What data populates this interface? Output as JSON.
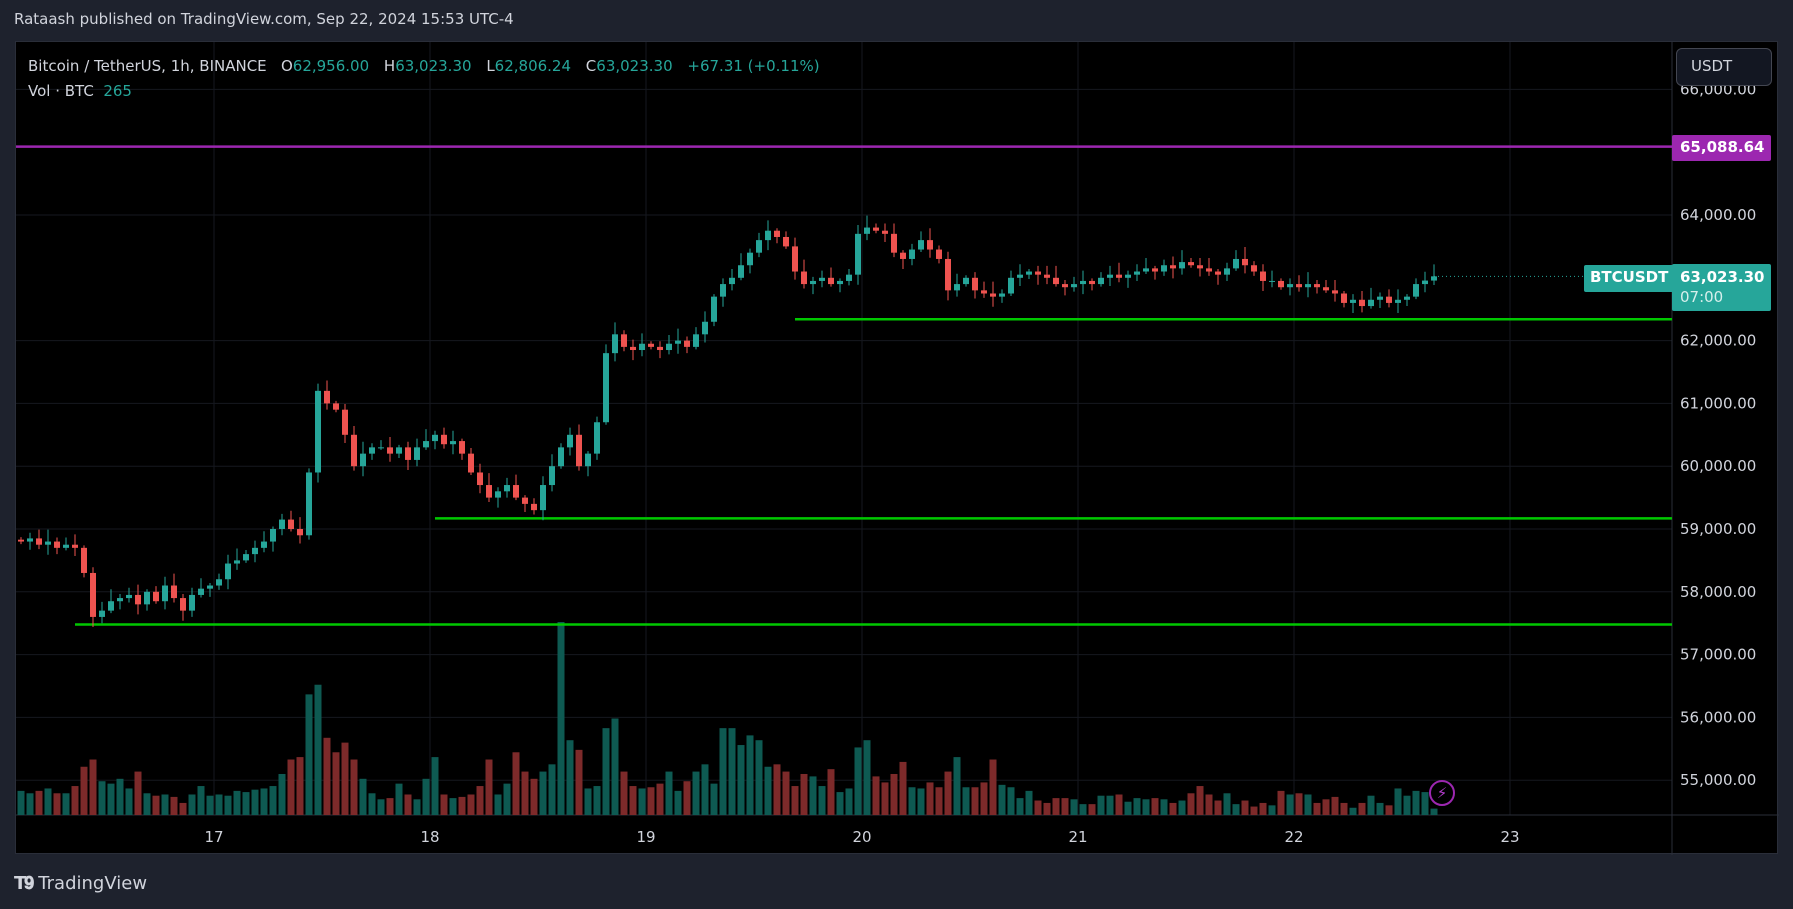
{
  "header": {
    "published": "Rataash published on TradingView.com, Sep 22, 2024 15:53 UTC-4"
  },
  "legend": {
    "symbol": "Bitcoin / TetherUS, 1h, BINANCE",
    "o_label": "O",
    "o": "62,956.00",
    "h_label": "H",
    "h": "63,023.30",
    "l_label": "L",
    "l": "62,806.24",
    "c_label": "C",
    "c": "63,023.30",
    "change": "+67.31 (+0.11%)",
    "vol_label": "Vol · BTC",
    "vol": "265"
  },
  "currency_button": "USDT",
  "last_price": {
    "symbol": "BTCUSDT",
    "price": "63,023.30",
    "countdown": "07:00"
  },
  "alert_line_label": "65,088.64",
  "brand": {
    "logo": "TV",
    "name": "TradingView"
  },
  "colors": {
    "up": "#26a69a",
    "down": "#ef5350",
    "vol_up": "#0e5a52",
    "vol_down": "#7d2a2a",
    "purple": "#9c27b0",
    "green_line": "#00c800"
  },
  "chart_data": {
    "type": "candlestick",
    "title": "Bitcoin / TetherUS, 1h, BINANCE",
    "x_start": "16 02:00",
    "interval": "1h",
    "x_ticks": [
      "17",
      "18",
      "19",
      "20",
      "21",
      "22",
      "23"
    ],
    "y_ticks": [
      "66,000.00",
      "64,000.00",
      "62,000.00",
      "61,000.00",
      "60,000.00",
      "59,000.00",
      "58,000.00",
      "57,000.00",
      "56,000.00",
      "55,000.00"
    ],
    "y_tick_values": [
      66000,
      64000,
      62000,
      61000,
      60000,
      59000,
      58000,
      57000,
      56000,
      55000
    ],
    "ylim": [
      54400,
      66700
    ],
    "close": [
      58800,
      58850,
      58750,
      58800,
      58700,
      58750,
      58700,
      58300,
      57600,
      57700,
      57850,
      57900,
      57950,
      57800,
      58000,
      57850,
      58100,
      57900,
      57700,
      57950,
      58050,
      58100,
      58200,
      58450,
      58500,
      58600,
      58700,
      58800,
      59000,
      59150,
      59000,
      58900,
      59900,
      61200,
      61000,
      60900,
      60500,
      60000,
      60200,
      60300,
      60300,
      60200,
      60300,
      60100,
      60300,
      60400,
      60500,
      60350,
      60400,
      60200,
      59900,
      59700,
      59500,
      59600,
      59700,
      59500,
      59400,
      59300,
      59700,
      60000,
      60300,
      60500,
      60000,
      60200,
      60700,
      61800,
      62100,
      61900,
      61850,
      61950,
      61900,
      61850,
      61950,
      62000,
      61900,
      62100,
      62300,
      62700,
      62900,
      63000,
      63200,
      63400,
      63600,
      63750,
      63650,
      63500,
      63100,
      62900,
      62950,
      63000,
      62900,
      62950,
      63050,
      63700,
      63800,
      63750,
      63700,
      63400,
      63300,
      63450,
      63600,
      63450,
      63300,
      62800,
      62900,
      63000,
      62800,
      62750,
      62700,
      62750,
      63000,
      63050,
      63100,
      63050,
      63000,
      62900,
      62850,
      62900,
      62950,
      62900,
      63000,
      63050,
      63000,
      63050,
      63100,
      63150,
      63100,
      63200,
      63150,
      63250,
      63200,
      63150,
      63100,
      63050,
      63150,
      63300,
      63200,
      63100,
      62950,
      62950,
      62850,
      62900,
      62850,
      62900,
      62850,
      62800,
      62750,
      62600,
      62650,
      62550,
      62650,
      62700,
      62600,
      62650,
      62700,
      62900,
      62956,
      63023.3
    ],
    "volume": [
      1000,
      900,
      1000,
      1100,
      900,
      900,
      1200,
      2000,
      2300,
      1400,
      1300,
      1500,
      1100,
      1800,
      900,
      800,
      850,
      750,
      500,
      850,
      1200,
      800,
      850,
      800,
      1000,
      950,
      1050,
      1100,
      1200,
      1700,
      2300,
      2400,
      5000,
      5400,
      3200,
      2600,
      3000,
      2300,
      1500,
      900,
      650,
      700,
      1300,
      850,
      650,
      1500,
      2400,
      850,
      700,
      750,
      850,
      1200,
      2300,
      850,
      1300,
      2600,
      1800,
      1500,
      1800,
      2100,
      8000,
      3100,
      2700,
      1100,
      1200,
      3600,
      4000,
      1800,
      1200,
      1100,
      1150,
      1300,
      1800,
      1000,
      1400,
      1800,
      2100,
      1300,
      3600,
      3600,
      2900,
      3300,
      3100,
      2000,
      2100,
      1800,
      1200,
      1700,
      1600,
      1200,
      1900,
      950,
      1100,
      2800,
      3100,
      1600,
      1350,
      1700,
      2200,
      1150,
      1100,
      1350,
      1150,
      1800,
      2400,
      1150,
      1150,
      1350,
      2300,
      1250,
      1150,
      700,
      1000,
      600,
      500,
      700,
      700,
      650,
      450,
      450,
      800,
      800,
      850,
      550,
      700,
      650,
      700,
      650,
      500,
      600,
      900,
      1200,
      850,
      600,
      900,
      450,
      600,
      350,
      500,
      400,
      1000,
      850,
      900,
      850,
      500,
      650,
      750,
      500,
      300,
      500,
      800,
      500,
      400,
      1100,
      800,
      1000,
      950,
      265
    ],
    "horizontal_lines": [
      {
        "price": 65088.64,
        "color": "purple",
        "start_index": 0
      },
      {
        "price": 62340,
        "color": "green",
        "start_index": 86
      },
      {
        "price": 59170,
        "color": "green",
        "start_index": 46
      },
      {
        "price": 57480,
        "color": "green",
        "start_index": 6
      }
    ]
  }
}
